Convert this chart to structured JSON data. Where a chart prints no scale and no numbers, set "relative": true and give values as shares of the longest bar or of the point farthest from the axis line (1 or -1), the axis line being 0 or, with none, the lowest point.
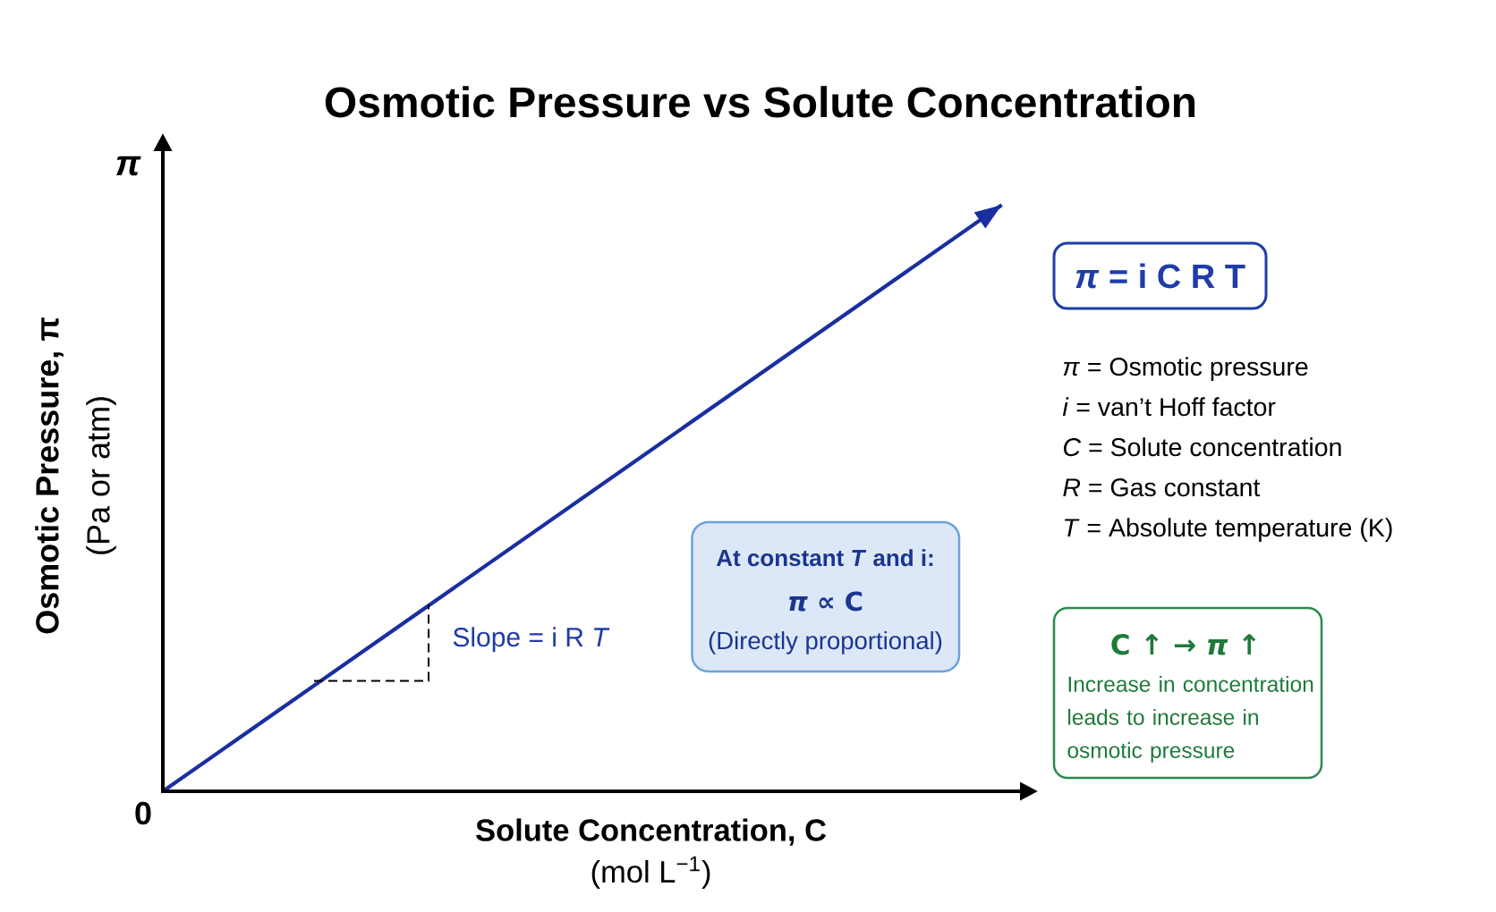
{
  "chart_data": {
    "type": "line",
    "title": "Osmotic Pressure vs Solute Concentration",
    "xlabel": "**Solute Concentration, C** (mol L$^{−1}$)",
    "ylabel": "**Osmotic Pressure, π** (Pa or atm)",
    "categories": [
      null,
      null
    ],
    "values": [
      0,
      1
    ],
    "relative": true,
    "color": "#1a2f9f",
    "annotations": [
      "π",
      "0",
      "Slope = i R *T*",
      "At constant *T* and i:",
      "*π* ∝ C",
      "(Directly proportional)",
      "*π* = i C R T",
      "*π* = Osmotic pressure",
      "*i* = van’t Hoff factor",
      "*C* = Solute concentration",
      "*R* = Gas constant",
      "*T* = Absolute temperature (K)",
      "C ↑ → *π* ↑",
      "Increase in concentration leads to increase in osmotic pressure"
    ]
  }
}
